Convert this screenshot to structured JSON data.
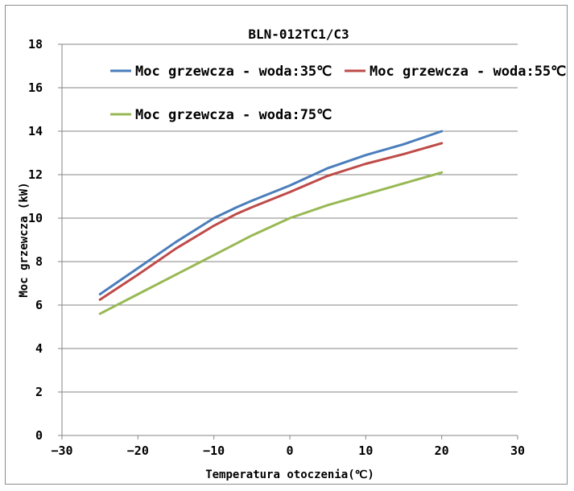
{
  "chart_data": {
    "type": "line",
    "title": "BLN-012TC1/C3",
    "xlabel": "Temperatura otoczenia(℃)",
    "ylabel": "Moc grzewcza (kW)",
    "xlim": [
      -30,
      30
    ],
    "ylim": [
      0,
      18
    ],
    "x_ticks": [
      "-30",
      "-20",
      "-10",
      "0",
      "10",
      "20",
      "30"
    ],
    "y_ticks": [
      "0",
      "2",
      "4",
      "6",
      "8",
      "10",
      "12",
      "14",
      "16",
      "18"
    ],
    "grid": true,
    "legend_position": "top",
    "series": [
      {
        "name": "Moc grzewcza - woda:35℃",
        "color": "#4a7ebb",
        "x": [
          -25,
          -20,
          -15,
          -10,
          -7,
          -5,
          0,
          5,
          10,
          15,
          20
        ],
        "y": [
          6.5,
          7.7,
          8.9,
          10.0,
          10.5,
          10.8,
          11.5,
          12.3,
          12.9,
          13.4,
          14.0
        ]
      },
      {
        "name": "Moc grzewcza - woda:55℃",
        "color": "#be4b48",
        "x": [
          -25,
          -20,
          -15,
          -10,
          -7,
          -5,
          0,
          5,
          10,
          15,
          20
        ],
        "y": [
          6.25,
          7.4,
          8.6,
          9.65,
          10.2,
          10.5,
          11.2,
          11.95,
          12.5,
          12.95,
          13.45
        ]
      },
      {
        "name": "Moc grzewcza - woda:75℃",
        "color": "#98b954",
        "x": [
          -25,
          -20,
          -15,
          -10,
          -5,
          0,
          5,
          10,
          15,
          20
        ],
        "y": [
          5.6,
          6.5,
          7.4,
          8.3,
          9.2,
          10.0,
          10.6,
          11.1,
          11.6,
          12.1
        ]
      }
    ]
  }
}
